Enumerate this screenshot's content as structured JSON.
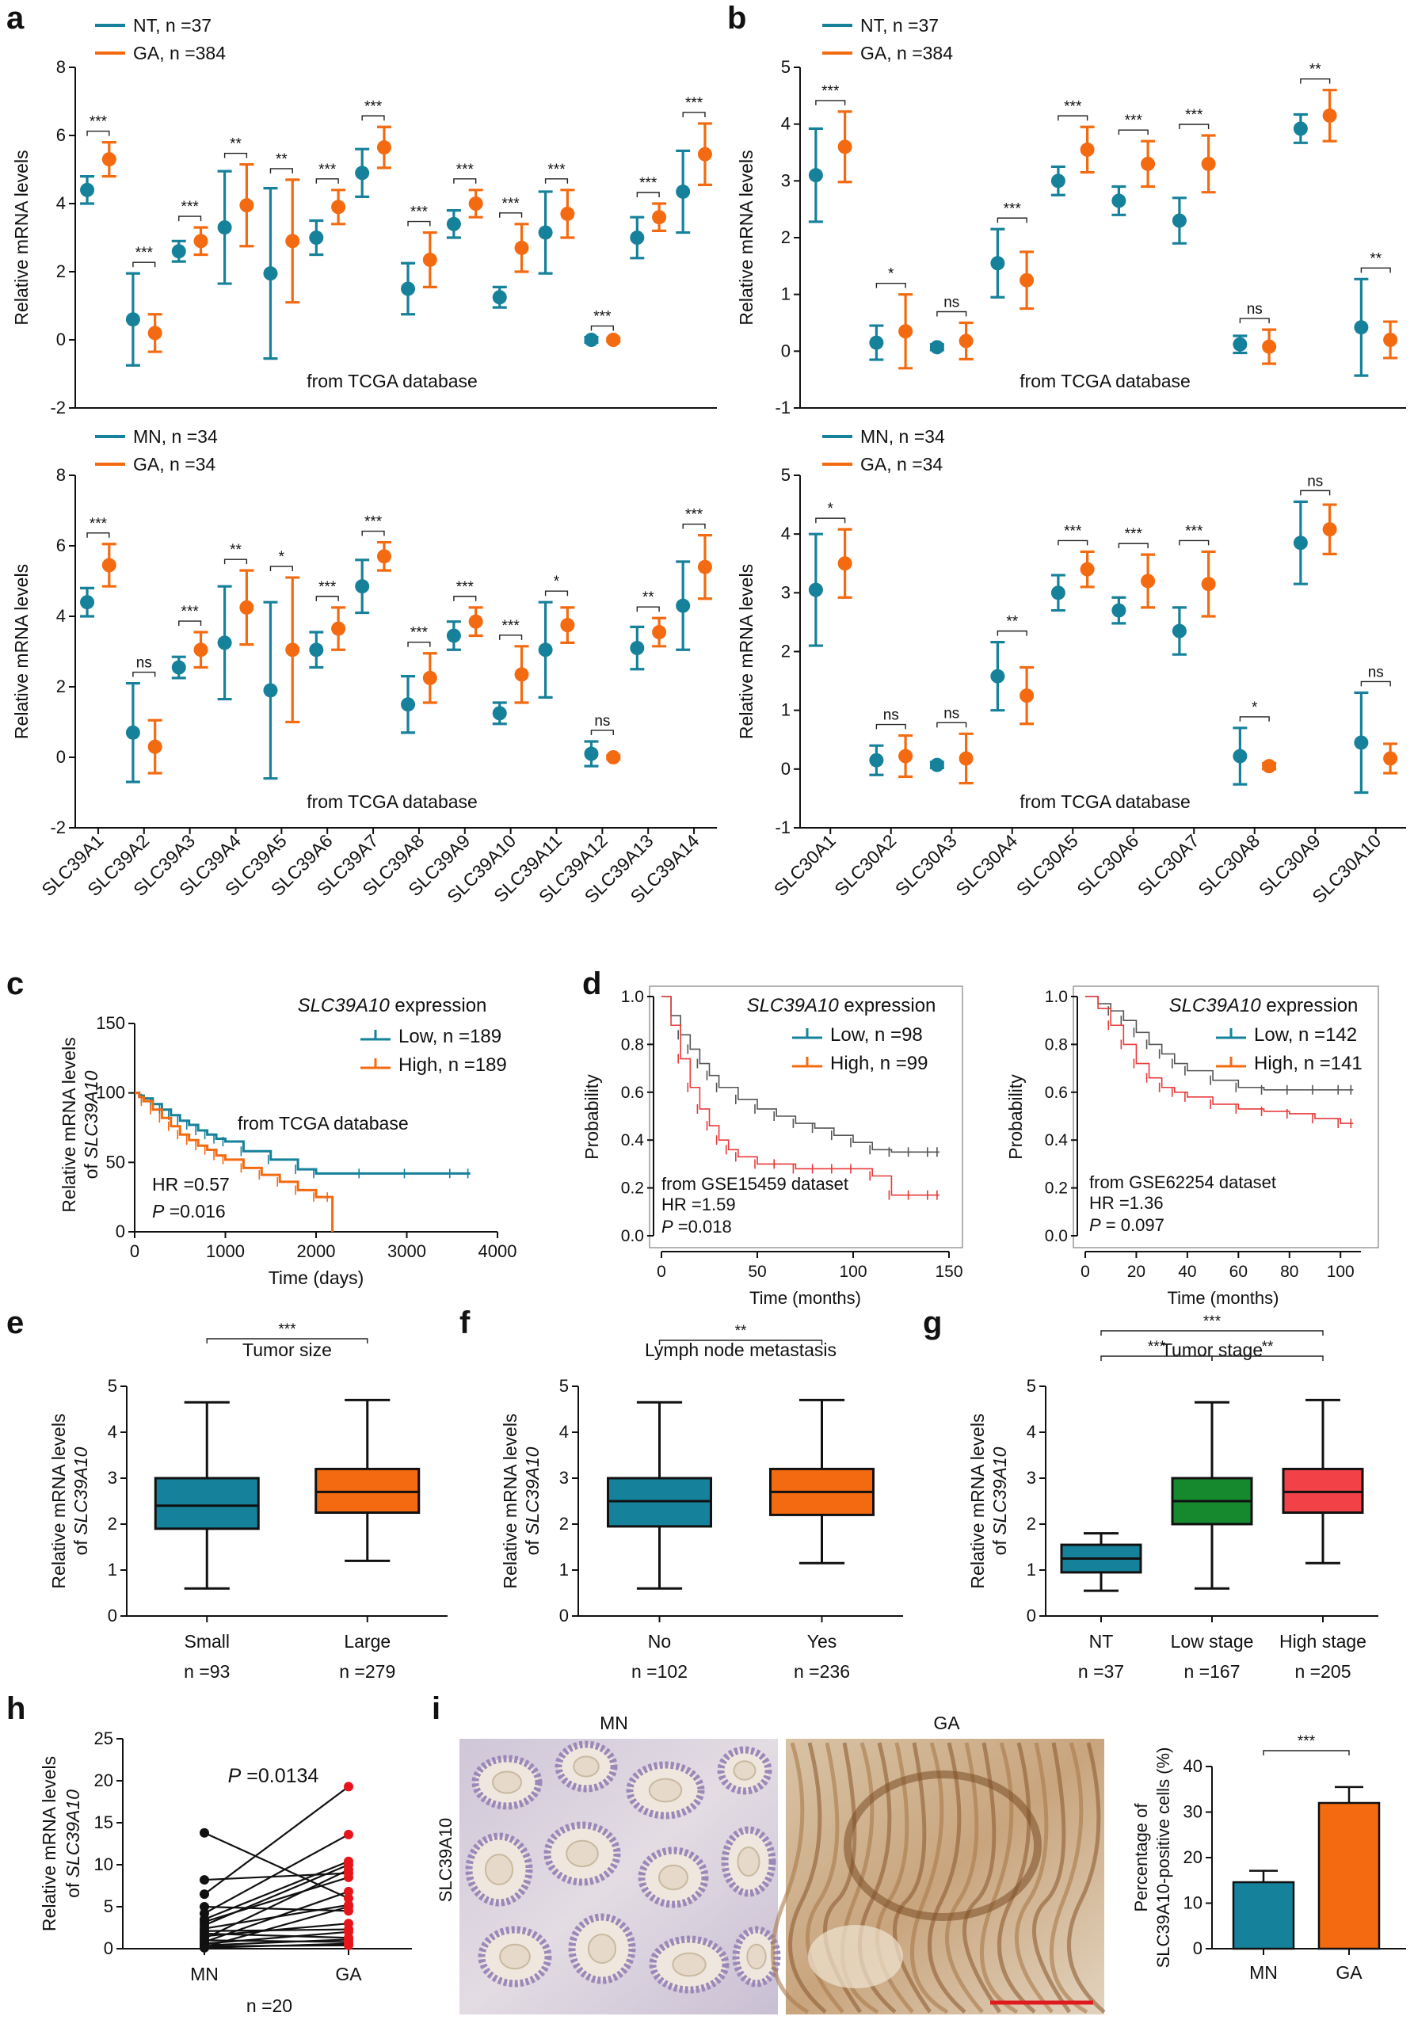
{
  "colors": {
    "teal": "#16819A",
    "orange": "#F36A11",
    "green": "#16892E",
    "red": "#F24247",
    "km_low": "#555555",
    "km_high": "#E83A3A"
  },
  "panels": {
    "a": "a",
    "b": "b",
    "c": "c",
    "d": "d",
    "e": "e",
    "f": "f",
    "g": "g",
    "h": "h",
    "i": "i"
  },
  "common": {
    "ylabel_mrna": "Relative mRNA levels",
    "source_tcga": "from TCGA database",
    "ylabel_slc_line1": "Relative mRNA levels",
    "ylabel_slc_line2_prefix": "of ",
    "gene": "SLC39A10",
    "expression": " expression"
  },
  "chart_data": [
    {
      "id": "a_top",
      "type": "scatter",
      "ylim": [
        -2,
        8
      ],
      "yticks": [
        -2,
        0,
        2,
        4,
        6,
        8
      ],
      "ylabel": "Relative mRNA levels",
      "annotation": "from TCGA database",
      "legend": [
        "NT, n =37",
        "GA, n =384"
      ],
      "categories": [
        "SLC39A1",
        "SLC39A2",
        "SLC39A3",
        "SLC39A4",
        "SLC39A5",
        "SLC39A6",
        "SLC39A7",
        "SLC39A8",
        "SLC39A9",
        "SLC39A10",
        "SLC39A11",
        "SLC39A12",
        "SLC39A13",
        "SLC39A14"
      ],
      "series": [
        {
          "name": "NT",
          "mean": [
            4.4,
            0.6,
            2.6,
            3.3,
            1.95,
            3.0,
            4.9,
            1.5,
            3.4,
            1.25,
            3.15,
            0.0,
            3.0,
            4.35
          ],
          "err": [
            0.4,
            1.35,
            0.3,
            1.65,
            2.5,
            0.5,
            0.7,
            0.75,
            0.4,
            0.3,
            1.2,
            0.08,
            0.6,
            1.2
          ]
        },
        {
          "name": "GA",
          "mean": [
            5.3,
            0.2,
            2.9,
            3.95,
            2.9,
            3.9,
            5.65,
            2.35,
            4.0,
            2.7,
            3.7,
            0.0,
            3.6,
            5.45
          ],
          "err": [
            0.5,
            0.55,
            0.4,
            1.2,
            1.8,
            0.5,
            0.6,
            0.8,
            0.4,
            0.7,
            0.7,
            0.05,
            0.4,
            0.9
          ]
        }
      ],
      "significance": [
        "***",
        "***",
        "***",
        "**",
        "**",
        "***",
        "***",
        "***",
        "***",
        "***",
        "***",
        "***",
        "***",
        "***"
      ]
    },
    {
      "id": "a_bottom",
      "type": "scatter",
      "ylim": [
        -2,
        8
      ],
      "yticks": [
        -2,
        0,
        2,
        4,
        6,
        8
      ],
      "ylabel": "Relative mRNA levels",
      "annotation": "from TCGA database",
      "legend": [
        "MN, n =34",
        "GA, n =34"
      ],
      "categories": [
        "SLC39A1",
        "SLC39A2",
        "SLC39A3",
        "SLC39A4",
        "SLC39A5",
        "SLC39A6",
        "SLC39A7",
        "SLC39A8",
        "SLC39A9",
        "SLC39A10",
        "SLC39A11",
        "SLC39A12",
        "SLC39A13",
        "SLC39A14"
      ],
      "series": [
        {
          "name": "MN",
          "mean": [
            4.4,
            0.7,
            2.55,
            3.25,
            1.9,
            3.05,
            4.85,
            1.5,
            3.45,
            1.25,
            3.05,
            0.1,
            3.1,
            4.3
          ],
          "err": [
            0.4,
            1.4,
            0.3,
            1.6,
            2.5,
            0.5,
            0.75,
            0.8,
            0.4,
            0.3,
            1.35,
            0.35,
            0.6,
            1.25
          ]
        },
        {
          "name": "GA",
          "mean": [
            5.45,
            0.3,
            3.05,
            4.25,
            3.05,
            3.65,
            5.7,
            2.25,
            3.85,
            2.35,
            3.75,
            0.0,
            3.55,
            5.4
          ],
          "err": [
            0.6,
            0.75,
            0.5,
            1.05,
            2.05,
            0.6,
            0.4,
            0.7,
            0.4,
            0.8,
            0.5,
            0.05,
            0.4,
            0.9
          ]
        }
      ],
      "significance": [
        "***",
        "ns",
        "***",
        "**",
        "*",
        "***",
        "***",
        "***",
        "***",
        "***",
        "*",
        "ns",
        "**",
        "***"
      ]
    },
    {
      "id": "b_top",
      "type": "scatter",
      "ylim": [
        -1,
        5
      ],
      "yticks": [
        -1,
        0,
        1,
        2,
        3,
        4,
        5
      ],
      "ylabel": "Relative mRNA levels",
      "annotation": "from TCGA database",
      "legend": [
        "NT, n =37",
        "GA, n =384"
      ],
      "categories": [
        "SLC30A1",
        "SLC30A2",
        "SLC30A3",
        "SLC30A4",
        "SLC30A5",
        "SLC30A6",
        "SLC30A7",
        "SLC30A8",
        "SLC30A9",
        "SLC30A10"
      ],
      "series": [
        {
          "name": "NT",
          "mean": [
            3.1,
            0.15,
            0.07,
            1.55,
            3.0,
            2.65,
            2.3,
            0.12,
            3.92,
            0.42
          ],
          "err": [
            0.82,
            0.3,
            0.05,
            0.6,
            0.25,
            0.25,
            0.4,
            0.15,
            0.25,
            0.85
          ]
        },
        {
          "name": "GA",
          "mean": [
            3.6,
            0.35,
            0.18,
            1.25,
            3.55,
            3.3,
            3.3,
            0.08,
            4.15,
            0.2
          ],
          "err": [
            0.62,
            0.65,
            0.32,
            0.5,
            0.4,
            0.4,
            0.5,
            0.3,
            0.45,
            0.32
          ]
        }
      ],
      "significance": [
        "***",
        "*",
        "ns",
        "***",
        "***",
        "***",
        "***",
        "ns",
        "**",
        "**"
      ]
    },
    {
      "id": "b_bottom",
      "type": "scatter",
      "ylim": [
        -1,
        5
      ],
      "yticks": [
        -1,
        0,
        1,
        2,
        3,
        4,
        5
      ],
      "ylabel": "Relative mRNA levels",
      "annotation": "from TCGA database",
      "legend": [
        "MN, n =34",
        "GA, n =34"
      ],
      "categories": [
        "SLC30A1",
        "SLC30A2",
        "SLC30A3",
        "SLC30A4",
        "SLC30A5",
        "SLC30A6",
        "SLC30A7",
        "SLC30A8",
        "SLC30A9",
        "SLC30A10"
      ],
      "series": [
        {
          "name": "MN",
          "mean": [
            3.05,
            0.15,
            0.07,
            1.58,
            3.0,
            2.7,
            2.35,
            0.22,
            3.85,
            0.45
          ],
          "err": [
            0.95,
            0.25,
            0.05,
            0.58,
            0.3,
            0.22,
            0.4,
            0.48,
            0.7,
            0.85
          ]
        },
        {
          "name": "GA",
          "mean": [
            3.5,
            0.22,
            0.18,
            1.25,
            3.4,
            3.2,
            3.15,
            0.05,
            4.08,
            0.18
          ],
          "err": [
            0.58,
            0.35,
            0.42,
            0.48,
            0.3,
            0.45,
            0.55,
            0.05,
            0.42,
            0.25
          ]
        }
      ],
      "significance": [
        "*",
        "ns",
        "ns",
        "**",
        "***",
        "***",
        "***",
        "*",
        "ns",
        "ns"
      ]
    },
    {
      "id": "c",
      "type": "line",
      "title_gene": "SLC39A10",
      "title_suffix": " expression",
      "xlim": [
        0,
        4000
      ],
      "xticks": [
        0,
        1000,
        2000,
        3000,
        4000
      ],
      "ylim": [
        0,
        150
      ],
      "yticks": [
        0,
        50,
        100,
        150
      ],
      "xlabel": "Time (days)",
      "ylabel_line1": "Relative mRNA levels",
      "ylabel_line2_prefix": "of ",
      "ylabel_gene": "SLC39A10",
      "legend": [
        "Low, n =189",
        "High, n =189"
      ],
      "annotation": "from TCGA database",
      "hr": "HR =0.57",
      "p_label": "P",
      "p_value": " =0.016",
      "series": [
        {
          "name": "Low",
          "x": [
            0,
            50,
            100,
            200,
            300,
            400,
            500,
            600,
            700,
            800,
            900,
            1000,
            1200,
            1500,
            1800,
            2000,
            2500,
            3000,
            3500,
            3700
          ],
          "y": [
            100,
            98,
            96,
            92,
            88,
            84,
            80,
            77,
            73,
            70,
            67,
            65,
            58,
            52,
            45,
            42,
            42,
            42,
            42,
            42
          ]
        },
        {
          "name": "High",
          "x": [
            0,
            50,
            100,
            200,
            300,
            400,
            500,
            600,
            700,
            800,
            900,
            1000,
            1200,
            1400,
            1600,
            1800,
            2000,
            2150,
            2180
          ],
          "y": [
            100,
            97,
            94,
            88,
            82,
            76,
            70,
            66,
            62,
            59,
            55,
            52,
            46,
            41,
            36,
            30,
            25,
            25,
            0
          ]
        }
      ]
    },
    {
      "id": "d_left",
      "type": "line",
      "title_gene": "SLC39A10",
      "title_suffix": " expression",
      "xlim": [
        0,
        150
      ],
      "xticks": [
        0,
        50,
        100,
        150
      ],
      "ylim": [
        0,
        1
      ],
      "yticks": [
        0.0,
        0.2,
        0.4,
        0.6,
        0.8,
        1.0
      ],
      "xlabel": "Time (months)",
      "ylabel": "Probability",
      "legend": [
        "Low, n =98",
        "High, n =99"
      ],
      "source": "from GSE15459 dataset",
      "hr": "HR =1.59",
      "p_label": "P",
      "p_value": " =0.018",
      "series": [
        {
          "name": "Low",
          "x": [
            0,
            5,
            10,
            15,
            20,
            25,
            30,
            40,
            50,
            60,
            70,
            80,
            90,
            100,
            110,
            120,
            130,
            140,
            145
          ],
          "y": [
            1.0,
            0.92,
            0.84,
            0.78,
            0.72,
            0.67,
            0.62,
            0.57,
            0.53,
            0.5,
            0.47,
            0.45,
            0.42,
            0.39,
            0.36,
            0.35,
            0.35,
            0.35,
            0.35
          ]
        },
        {
          "name": "High",
          "x": [
            0,
            5,
            10,
            15,
            20,
            25,
            30,
            35,
            40,
            50,
            60,
            70,
            80,
            90,
            100,
            110,
            120,
            130,
            140,
            145
          ],
          "y": [
            1.0,
            0.88,
            0.74,
            0.62,
            0.53,
            0.46,
            0.4,
            0.36,
            0.33,
            0.3,
            0.3,
            0.28,
            0.28,
            0.28,
            0.28,
            0.25,
            0.17,
            0.17,
            0.17,
            0.17
          ]
        }
      ]
    },
    {
      "id": "d_right",
      "type": "line",
      "title_gene": "SLC39A10",
      "title_suffix": " expression",
      "xlim": [
        0,
        108
      ],
      "xticks": [
        0,
        20,
        40,
        60,
        80,
        100
      ],
      "ylim": [
        0,
        1
      ],
      "yticks": [
        0.0,
        0.2,
        0.4,
        0.6,
        0.8,
        1.0
      ],
      "xlabel": "Time (months)",
      "ylabel": "Probability",
      "legend": [
        "Low, n =142",
        "High, n =141"
      ],
      "source": "from GSE62254 dataset",
      "hr": "HR =1.36",
      "p_label": "P",
      "p_value": " = 0.097",
      "series": [
        {
          "name": "Low",
          "x": [
            0,
            5,
            10,
            15,
            20,
            25,
            30,
            35,
            40,
            50,
            60,
            70,
            80,
            90,
            100,
            105
          ],
          "y": [
            1.0,
            0.97,
            0.94,
            0.9,
            0.85,
            0.8,
            0.76,
            0.72,
            0.69,
            0.65,
            0.62,
            0.61,
            0.61,
            0.61,
            0.61,
            0.61
          ]
        },
        {
          "name": "High",
          "x": [
            0,
            5,
            10,
            15,
            20,
            25,
            30,
            35,
            40,
            50,
            60,
            70,
            80,
            90,
            100,
            105
          ],
          "y": [
            1.0,
            0.95,
            0.88,
            0.8,
            0.72,
            0.66,
            0.62,
            0.6,
            0.58,
            0.55,
            0.53,
            0.52,
            0.51,
            0.49,
            0.47,
            0.47
          ]
        }
      ]
    },
    {
      "id": "e",
      "type": "box",
      "title": "Tumor size",
      "ylim": [
        0,
        5
      ],
      "yticks": [
        0,
        1,
        2,
        3,
        4,
        5
      ],
      "ylabel_line1": "Relative mRNA levels",
      "ylabel_line2_prefix": "of ",
      "ylabel_gene": "SLC39A10",
      "categories": [
        "Small",
        "Large"
      ],
      "counts": [
        "n =93",
        "n =279"
      ],
      "boxes": [
        {
          "min": 0.6,
          "q1": 1.9,
          "median": 2.4,
          "q3": 3.0,
          "max": 4.65
        },
        {
          "min": 1.2,
          "q1": 2.25,
          "median": 2.7,
          "q3": 3.2,
          "max": 4.7
        }
      ],
      "significance": [
        {
          "from": 0,
          "to": 1,
          "label": "***"
        }
      ]
    },
    {
      "id": "f",
      "type": "box",
      "title": "Lymph node metastasis",
      "ylim": [
        0,
        5
      ],
      "yticks": [
        0,
        1,
        2,
        3,
        4,
        5
      ],
      "ylabel_line1": "Relative mRNA levels",
      "ylabel_line2_prefix": "of ",
      "ylabel_gene": "SLC39A10",
      "categories": [
        "No",
        "Yes"
      ],
      "counts": [
        "n =102",
        "n =236"
      ],
      "boxes": [
        {
          "min": 0.6,
          "q1": 1.95,
          "median": 2.5,
          "q3": 3.0,
          "max": 4.65
        },
        {
          "min": 1.15,
          "q1": 2.2,
          "median": 2.7,
          "q3": 3.2,
          "max": 4.7
        }
      ],
      "significance": [
        {
          "from": 0,
          "to": 1,
          "label": "**"
        }
      ]
    },
    {
      "id": "g",
      "type": "box",
      "title": "Tumor stage",
      "ylim": [
        0,
        5
      ],
      "yticks": [
        0,
        1,
        2,
        3,
        4,
        5
      ],
      "ylabel_line1": "Relative mRNA levels",
      "ylabel_line2_prefix": "of ",
      "ylabel_gene": "SLC39A10",
      "categories": [
        "NT",
        "Low stage",
        "High stage"
      ],
      "counts": [
        "n =37",
        "n =167",
        "n =205"
      ],
      "boxes": [
        {
          "min": 0.55,
          "q1": 0.95,
          "median": 1.25,
          "q3": 1.55,
          "max": 1.8
        },
        {
          "min": 0.6,
          "q1": 2.0,
          "median": 2.5,
          "q3": 3.0,
          "max": 4.65
        },
        {
          "min": 1.15,
          "q1": 2.25,
          "median": 2.7,
          "q3": 3.2,
          "max": 4.7
        }
      ],
      "significance": [
        {
          "from": 0,
          "to": 1,
          "label": "***"
        },
        {
          "from": 1,
          "to": 2,
          "label": "**"
        },
        {
          "from": 0,
          "to": 2,
          "label": "***"
        }
      ]
    },
    {
      "id": "h",
      "type": "line",
      "ylim": [
        0,
        25
      ],
      "yticks": [
        0,
        5,
        10,
        15,
        20,
        25
      ],
      "ylabel_line1": "Relative mRNA levels",
      "ylabel_line2_prefix": "of ",
      "ylabel_gene": "SLC39A10",
      "categories": [
        "MN",
        "GA"
      ],
      "n_label": "n =20",
      "p_label": "P",
      "p_value": " =0.0134",
      "pairs_mn": [
        13.8,
        8.2,
        6.5,
        5.0,
        4.2,
        3.5,
        3.2,
        2.8,
        2.4,
        2.1,
        1.8,
        1.5,
        1.2,
        1.0,
        0.8,
        0.6,
        0.4,
        0.3,
        0.2,
        0.1
      ],
      "pairs_ga": [
        6.0,
        9.0,
        19.3,
        4.5,
        13.6,
        10.4,
        8.5,
        10.0,
        5.2,
        2.3,
        1.3,
        3.0,
        9.4,
        0.8,
        6.8,
        2.0,
        1.1,
        0.4,
        5.0,
        0.6
      ]
    },
    {
      "id": "i_bar",
      "type": "bar",
      "ylim": [
        0,
        40
      ],
      "yticks": [
        0,
        10,
        20,
        30,
        40
      ],
      "ylabel_line1": "Percentage of",
      "ylabel_line2": "SLC39A10-positive cells (%)",
      "categories": [
        "MN",
        "GA"
      ],
      "values": [
        14.6,
        32.0
      ],
      "err": [
        2.5,
        3.5
      ],
      "significance": "***"
    }
  ],
  "ihc": {
    "row_label": "SLC39A10",
    "left_title": "MN",
    "right_title": "GA"
  }
}
